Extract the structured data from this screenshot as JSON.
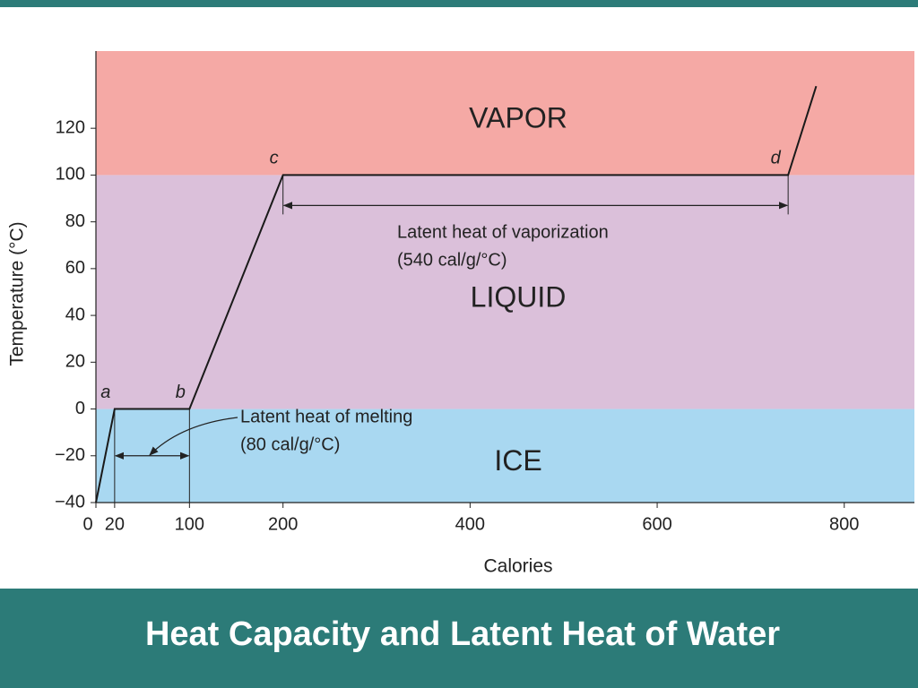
{
  "chart_data": {
    "type": "line",
    "title": "Heat Capacity and Latent Heat of Water",
    "x_label": "Calories",
    "y_label": "Temperature (°C)",
    "x": [
      0,
      20,
      100,
      200,
      740,
      770
    ],
    "values": [
      -40,
      0,
      0,
      100,
      100,
      138
    ],
    "point_labels": [
      null,
      "a",
      "b",
      "c",
      "d",
      null
    ],
    "color": "#1a1a1a",
    "xlim": [
      0,
      875
    ],
    "ylim": [
      -40,
      153
    ],
    "xticks": [
      0,
      20,
      100,
      200,
      400,
      600,
      800
    ],
    "yticks": [
      {
        "value": -40,
        "label": "−40"
      },
      {
        "value": -20,
        "label": "−20"
      },
      0,
      20,
      40,
      60,
      80,
      100,
      120
    ],
    "regions": [
      {
        "name": "ICE",
        "from": -40,
        "to": 0,
        "color": "#a9d8f1"
      },
      {
        "name": "LIQUID",
        "from": 0,
        "to": 100,
        "color": "#dbc0da"
      },
      {
        "name": "VAPOR",
        "from": 100,
        "to": 153,
        "color": "#f5a9a5"
      }
    ],
    "annotations": [
      {
        "text": [
          "Latent heat of vaporization",
          "(540 cal/g/°C)"
        ],
        "from": 200,
        "to": 740,
        "y": 87
      },
      {
        "text": [
          "Latent heat of melting",
          "(80 cal/g/°C)"
        ],
        "from": 20,
        "to": 100,
        "y": -20
      }
    ]
  }
}
